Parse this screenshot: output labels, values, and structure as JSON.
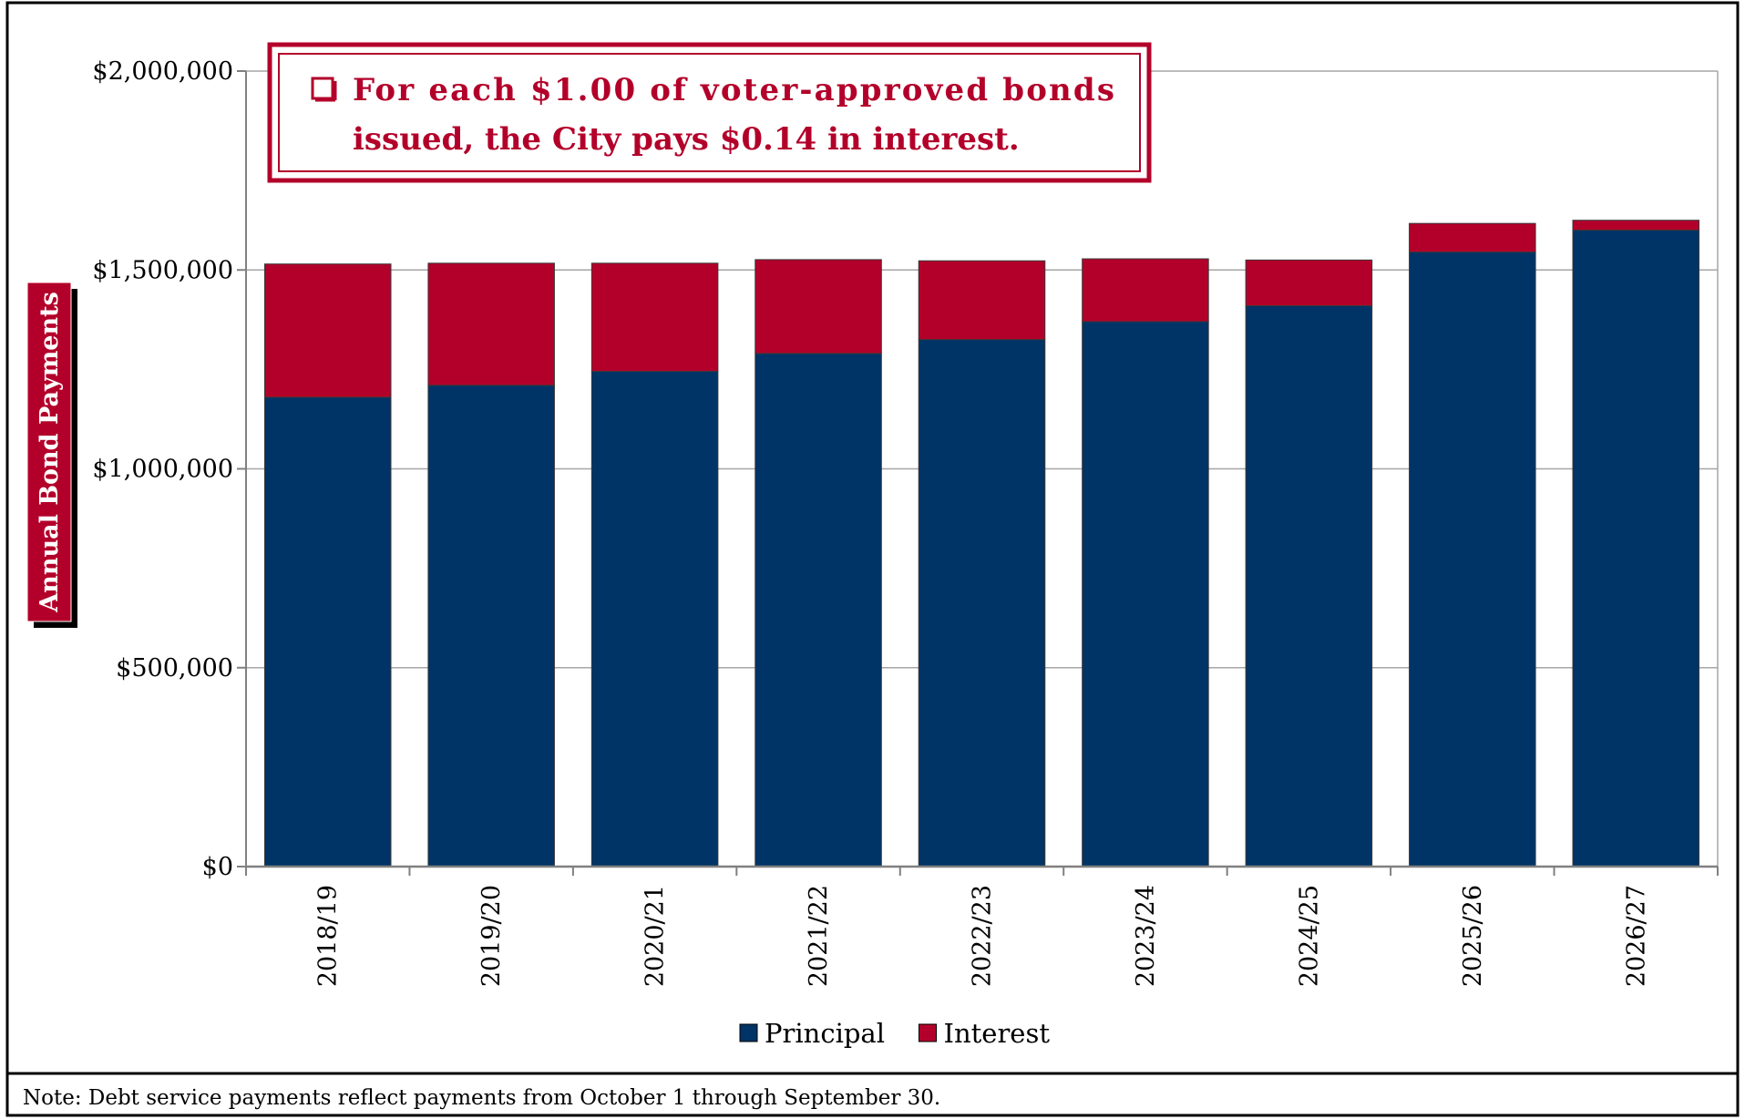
{
  "callout": {
    "bullet_icon": "checkbox-bullet-icon",
    "line1": "For each $1.00 of voter-approved bonds",
    "line2": "issued, the City pays $0.14 in interest."
  },
  "note": "Note: Debt service payments reflect payments from October 1 through September 30.",
  "colors": {
    "principal": "#003366",
    "interest": "#b3002a",
    "accent": "#b3002a"
  },
  "chart_data": {
    "type": "bar",
    "stacked": true,
    "title": "",
    "xlabel": "",
    "ylabel": "Annual Bond Payments",
    "ylim": [
      0,
      2000000
    ],
    "yticks": [
      0,
      500000,
      1000000,
      1500000,
      2000000
    ],
    "ytick_labels": [
      "$0",
      "$500,000",
      "$1,000,000",
      "$1,500,000",
      "$2,000,000"
    ],
    "grid": true,
    "legend_position": "bottom",
    "categories": [
      "2018/19",
      "2019/20",
      "2020/21",
      "2021/22",
      "2022/23",
      "2023/24",
      "2024/25",
      "2025/26",
      "2026/27"
    ],
    "series": [
      {
        "name": "Principal",
        "color": "#003366",
        "values": [
          1180000,
          1210000,
          1245000,
          1290000,
          1325000,
          1370000,
          1410000,
          1545000,
          1600000
        ]
      },
      {
        "name": "Interest",
        "color": "#b3002a",
        "values": [
          335000,
          307000,
          272000,
          236000,
          198000,
          158000,
          115000,
          72000,
          25000
        ]
      }
    ]
  }
}
